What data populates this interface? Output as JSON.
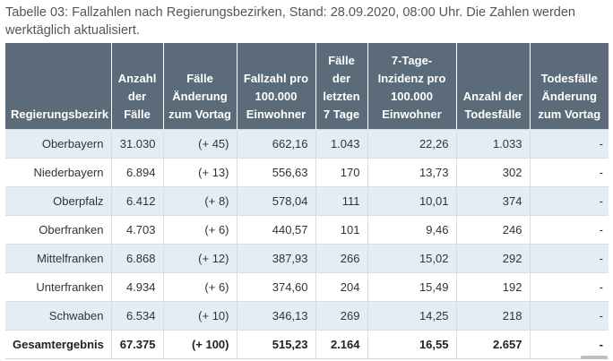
{
  "caption": "Tabelle 03: Fallzahlen nach Regierungsbezirken, Stand: 28.09.2020, 08:00 Uhr. Die Zahlen werden werktäglich aktualisiert.",
  "table": {
    "headers": [
      "Regierungsbezirk",
      "Anzahl der Fälle",
      "Fälle Änderung zum Vortag",
      "Fallzahl pro 100.000 Einwohner",
      "Fälle der letzten 7 Tage",
      "7-Tage-Inzidenz pro 100.000 Einwohner",
      "Anzahl der Todesfälle",
      "Todesfälle Änderung zum Vortag"
    ],
    "rows": [
      [
        "Oberbayern",
        "31.030",
        "(+ 45)",
        "662,16",
        "1.043",
        "22,26",
        "1.033",
        "-"
      ],
      [
        "Niederbayern",
        "6.894",
        "(+ 13)",
        "556,63",
        "170",
        "13,73",
        "302",
        "-"
      ],
      [
        "Oberpfalz",
        "6.412",
        "(+ 8)",
        "578,04",
        "111",
        "10,01",
        "374",
        "-"
      ],
      [
        "Oberfranken",
        "4.703",
        "(+ 6)",
        "440,57",
        "101",
        "9,46",
        "246",
        "-"
      ],
      [
        "Mittelfranken",
        "6.868",
        "(+ 12)",
        "387,93",
        "266",
        "15,02",
        "292",
        "-"
      ],
      [
        "Unterfranken",
        "4.934",
        "(+ 6)",
        "374,60",
        "204",
        "15,49",
        "192",
        "-"
      ],
      [
        "Schwaben",
        "6.534",
        "(+ 10)",
        "346,13",
        "269",
        "14,25",
        "218",
        "-"
      ]
    ],
    "total": [
      "Gesamtergebnis",
      "67.375",
      "(+ 100)",
      "515,23",
      "2.164",
      "16,55",
      "2.657",
      "-"
    ]
  },
  "colors": {
    "header_bg": "#5b6b79",
    "row_alt_bg": "#e3edf6",
    "caption_text": "#555555"
  }
}
